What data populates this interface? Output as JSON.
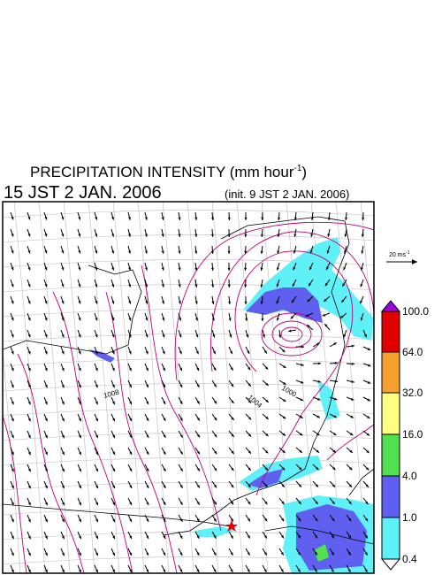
{
  "header": {
    "title": "PRECIPITATION INTENSITY (mm hour",
    "title_sup": "-1",
    "title_end": ")",
    "time": "15 JST 2 JAN. 2006",
    "init": "(init. 9 JST 2 JAN. 2006)"
  },
  "wind_scale": {
    "label": "20 ms",
    "label_sup": "-1"
  },
  "colorbar": {
    "labels": [
      "100.0",
      "64.0",
      "32.0",
      "16.0",
      "4.0",
      "1.0",
      "0.4"
    ]
  },
  "isobars": {
    "labels": [
      "1008",
      "1004",
      "1000"
    ]
  }
}
